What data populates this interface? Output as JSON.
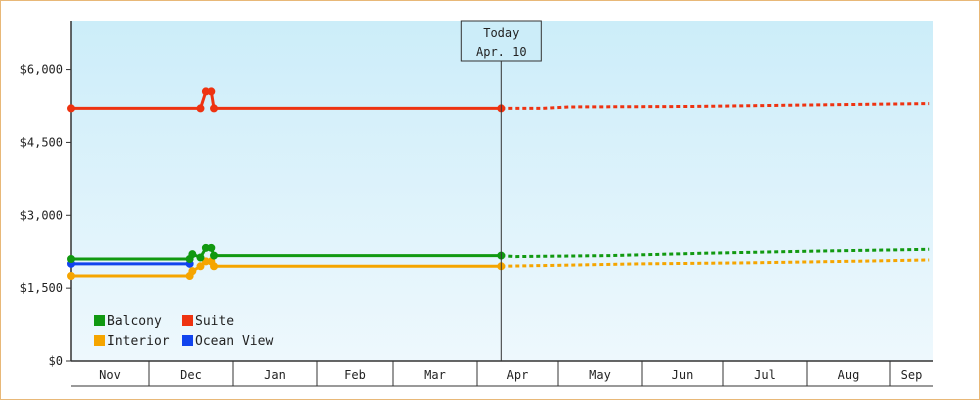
{
  "chart_data": {
    "type": "line",
    "x_axis_months": [
      "Nov",
      "Dec",
      "Jan",
      "Feb",
      "Mar",
      "Apr",
      "May",
      "Jun",
      "Jul",
      "Aug",
      "Sep"
    ],
    "y_ticks": [
      "$0",
      "$1,500",
      "$3,000",
      "$4,500",
      "$6,000"
    ],
    "ylim": [
      0,
      7000
    ],
    "today_marker": {
      "line1": "Today",
      "line2": "Apr. 10",
      "date": "2024-04-10"
    },
    "legend_position": "bottom-left",
    "background_gradient": [
      "#ccedf9",
      "#eef8fd"
    ],
    "series": [
      {
        "name": "Balcony",
        "color": "#119911",
        "points": [
          [
            "2023-11-01",
            2100
          ],
          [
            "2023-12-16",
            2100
          ],
          [
            "2023-12-17",
            2200
          ],
          [
            "2023-12-20",
            2130
          ],
          [
            "2023-12-22",
            2330
          ],
          [
            "2023-12-24",
            2330
          ],
          [
            "2023-12-25",
            2170
          ],
          [
            "2024-04-10",
            2170
          ]
        ],
        "forecast": [
          [
            "2024-04-10",
            2170
          ],
          [
            "2024-04-15",
            2150
          ],
          [
            "2024-05-20",
            2170
          ],
          [
            "2024-06-25",
            2220
          ],
          [
            "2024-08-01",
            2260
          ],
          [
            "2024-09-05",
            2290
          ],
          [
            "2024-09-15",
            2300
          ]
        ]
      },
      {
        "name": "Suite",
        "color": "#ee3311",
        "points": [
          [
            "2023-11-01",
            5200
          ],
          [
            "2023-12-20",
            5200
          ],
          [
            "2023-12-22",
            5550
          ],
          [
            "2023-12-24",
            5550
          ],
          [
            "2023-12-25",
            5200
          ],
          [
            "2024-04-10",
            5200
          ]
        ],
        "forecast": [
          [
            "2024-04-10",
            5200
          ],
          [
            "2024-04-25",
            5200
          ],
          [
            "2024-05-05",
            5230
          ],
          [
            "2024-06-20",
            5240
          ],
          [
            "2024-08-01",
            5270
          ],
          [
            "2024-09-15",
            5300
          ]
        ]
      },
      {
        "name": "Interior",
        "color": "#f5a500",
        "points": [
          [
            "2023-11-01",
            1750
          ],
          [
            "2023-12-16",
            1750
          ],
          [
            "2023-12-17",
            1850
          ],
          [
            "2023-12-20",
            1950
          ],
          [
            "2023-12-22",
            2050
          ],
          [
            "2023-12-24",
            2050
          ],
          [
            "2023-12-25",
            1950
          ],
          [
            "2024-04-10",
            1950
          ]
        ],
        "forecast": [
          [
            "2024-04-10",
            1950
          ],
          [
            "2024-05-01",
            1970
          ],
          [
            "2024-06-01",
            2000
          ],
          [
            "2024-07-10",
            2020
          ],
          [
            "2024-08-15",
            2050
          ],
          [
            "2024-09-15",
            2080
          ]
        ]
      },
      {
        "name": "Ocean View",
        "color": "#1144ee",
        "points": [
          [
            "2023-11-01",
            2000
          ],
          [
            "2023-12-16",
            2000
          ]
        ],
        "forecast": []
      }
    ]
  }
}
